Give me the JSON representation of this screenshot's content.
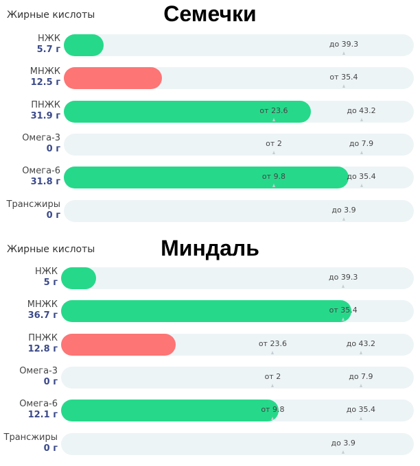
{
  "colors": {
    "ok": "#26d98a",
    "low": "#fd7575",
    "track": "#edf4f6"
  },
  "sections": [
    {
      "title": "Семечки",
      "header": "Жирные кислоты",
      "rows": [
        {
          "name": "НЖК",
          "value": "5.7 г",
          "fill": 0.114,
          "status": "ok",
          "markers": [
            "до 39.3"
          ]
        },
        {
          "name": "МНЖК",
          "value": "12.5 г",
          "fill": 0.28,
          "status": "low",
          "markers": [
            "от 35.4"
          ]
        },
        {
          "name": "ПНЖК",
          "value": "31.9 г",
          "fill": 0.706,
          "status": "ok",
          "markers": [
            "от 23.6",
            "до 43.2"
          ]
        },
        {
          "name": "Омега-3",
          "value": "0 г",
          "fill": 0,
          "status": "ok",
          "markers": [
            "от 2",
            "до 7.9"
          ]
        },
        {
          "name": "Омега-6",
          "value": "31.8 г",
          "fill": 0.814,
          "status": "ok",
          "markers": [
            "от 9.8",
            "до 35.4"
          ]
        },
        {
          "name": "Трансжиры",
          "value": "0 г",
          "fill": 0,
          "status": "ok",
          "markers": [
            "до 3.9"
          ]
        }
      ]
    },
    {
      "title": "Миндаль",
      "header": "Жирные кислоты",
      "rows": [
        {
          "name": "НЖК",
          "value": "5 г",
          "fill": 0.1,
          "status": "ok",
          "markers": [
            "до 39.3"
          ]
        },
        {
          "name": "МНЖК",
          "value": "36.7 г",
          "fill": 0.823,
          "status": "ok",
          "markers": [
            "от 35.4"
          ]
        },
        {
          "name": "ПНЖК",
          "value": "12.8 г",
          "fill": 0.325,
          "status": "low",
          "markers": [
            "от 23.6",
            "до 43.2"
          ]
        },
        {
          "name": "Омега-3",
          "value": "0 г",
          "fill": 0,
          "status": "ok",
          "markers": [
            "от 2",
            "до 7.9"
          ]
        },
        {
          "name": "Омега-6",
          "value": "12.1 г",
          "fill": 0.617,
          "status": "ok",
          "markers": [
            "от 9.8",
            "до 35.4"
          ]
        },
        {
          "name": "Трансжиры",
          "value": "0 г",
          "fill": 0,
          "status": "ok",
          "markers": [
            "до 3.9"
          ]
        }
      ]
    }
  ]
}
